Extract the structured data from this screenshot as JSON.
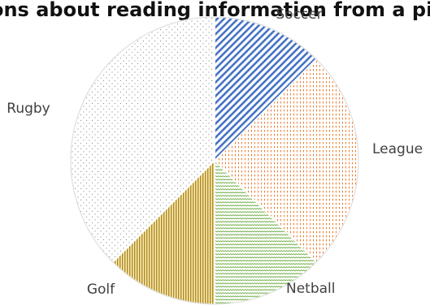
{
  "chart_data": {
    "type": "pie",
    "title": "Questions about reading information from a pie chart",
    "labels": [
      "Soccer",
      "League",
      "Netball",
      "Golf",
      "Rugby"
    ],
    "values": [
      12.5,
      25,
      12.5,
      12.5,
      37.5
    ],
    "colors": [
      "#4472c4",
      "#ed7d31",
      "#70ad47",
      "#ffc000",
      "#a5a5a5"
    ],
    "patterns": [
      "diagonal-stripes",
      "dotted-dashes",
      "zigzag",
      "vertical-lines",
      "sparse-dots"
    ],
    "start_angle_deg": 0,
    "direction": "clockwise"
  }
}
